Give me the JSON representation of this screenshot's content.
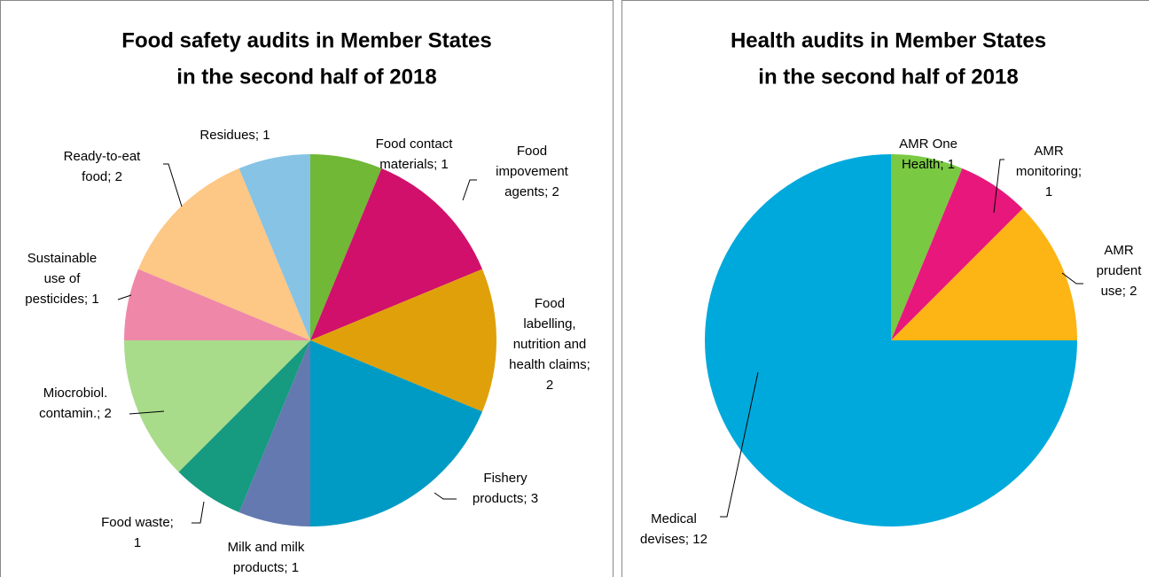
{
  "chart_data": [
    {
      "type": "pie",
      "title": [
        "Food safety audits in Member States",
        "in the second half of 2018"
      ],
      "categories": [
        "Food contact materials",
        "Food impovement agents",
        "Food labelling, nutrition and health claims",
        "Fishery products",
        "Milk and milk products",
        "Food waste",
        "Miocrobiol. contamin.",
        "Sustainable use of pesticides",
        "Ready-to-eat food",
        "Residues"
      ],
      "values": [
        1,
        2,
        2,
        3,
        1,
        1,
        2,
        1,
        2,
        1
      ],
      "value_labels": [
        [
          "Food contact",
          "materials; 1"
        ],
        [
          "Food",
          "impovement",
          "agents; 2"
        ],
        [
          "Food",
          "labelling,",
          "nutrition and",
          "health claims;",
          "2"
        ],
        [
          "Fishery",
          "products; 3"
        ],
        [
          "Milk and milk",
          "products; 1"
        ],
        [
          "Food waste;",
          "1"
        ],
        [
          "Miocrobiol.",
          "contamin.; 2"
        ],
        [
          "Sustainable",
          "use of",
          "pesticides; 1"
        ],
        [
          "Ready-to-eat",
          "food; 2"
        ],
        [
          "Residues; 1"
        ]
      ],
      "colors": [
        "#70b836",
        "#d0106b",
        "#e0a00a",
        "#009bc4",
        "#6479b0",
        "#169a80",
        "#a8db8a",
        "#ef88a8",
        "#fdc785",
        "#86c3e4"
      ]
    },
    {
      "type": "pie",
      "title": [
        "Health audits in Member States",
        "in the second half of 2018"
      ],
      "categories": [
        "AMR One Health",
        "AMR monitoring",
        "AMR prudent use",
        "Medical devises"
      ],
      "values": [
        1,
        1,
        2,
        12
      ],
      "value_labels": [
        [
          "AMR One",
          "Health; 1"
        ],
        [
          "AMR",
          "monitoring;",
          "1"
        ],
        [
          "AMR",
          "prudent",
          "use; 2"
        ],
        [
          "Medical",
          "devises; 12"
        ]
      ],
      "colors": [
        "#7ac943",
        "#e8177c",
        "#fdb515",
        "#00a9dc"
      ]
    }
  ]
}
